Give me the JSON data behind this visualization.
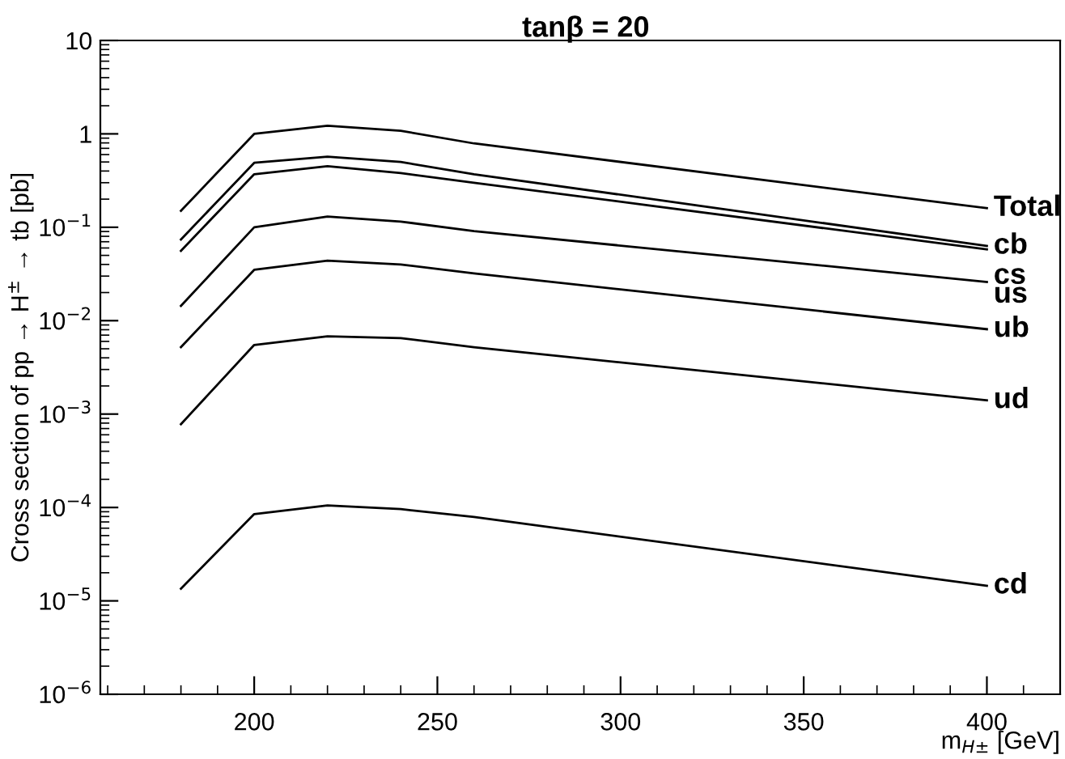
{
  "chart_data": {
    "type": "line",
    "title": "tanβ = 20",
    "xlabel": "m$_{H±}$ [GeV]",
    "ylabel": "Cross section of pp → H$^{±}$ → tb [pb]",
    "x": [
      180,
      200,
      220,
      240,
      260,
      400
    ],
    "series": [
      {
        "name": "Total",
        "color": "#000000",
        "values": [
          0.15,
          1.0,
          1.22,
          1.08,
          0.79,
          0.16
        ]
      },
      {
        "name": "cb",
        "color": "#000000",
        "values": [
          0.074,
          0.49,
          0.57,
          0.5,
          0.37,
          0.063
        ]
      },
      {
        "name": "cs",
        "color": "#000000",
        "values": [
          0.056,
          0.37,
          0.45,
          0.38,
          0.3,
          0.058
        ]
      },
      {
        "name": "us",
        "color": "#000000",
        "values": [
          0.0144,
          0.1,
          0.13,
          0.115,
          0.091,
          0.026
        ]
      },
      {
        "name": "ub",
        "color": "#000000",
        "values": [
          0.0052,
          0.035,
          0.044,
          0.04,
          0.032,
          0.0081
        ]
      },
      {
        "name": "ud",
        "color": "#000000",
        "values": [
          0.00078,
          0.0055,
          0.0068,
          0.0065,
          0.0052,
          0.0014
        ]
      },
      {
        "name": "cd",
        "color": "#000000",
        "values": [
          1.35e-05,
          8.5e-05,
          0.000105,
          9.6e-05,
          7.9e-05,
          1.45e-05
        ]
      }
    ],
    "log": "y",
    "xlim": [
      158,
      420
    ],
    "ylim": [
      1e-06,
      10
    ],
    "xticks": [
      200,
      250,
      300,
      350,
      400
    ],
    "yticks": [
      {
        "value": 1e-06,
        "label": "10$^{−6}$"
      },
      {
        "value": 1e-05,
        "label": "10$^{−5}$"
      },
      {
        "value": 0.0001,
        "label": "10$^{−4}$"
      },
      {
        "value": 0.001,
        "label": "10$^{−3}$"
      },
      {
        "value": 0.01,
        "label": "10$^{−2}$"
      },
      {
        "value": 0.1,
        "label": "10$^{−1}$"
      },
      1,
      10
    ],
    "grid": false,
    "legend": false,
    "marker": "none",
    "line_style": "solid"
  }
}
